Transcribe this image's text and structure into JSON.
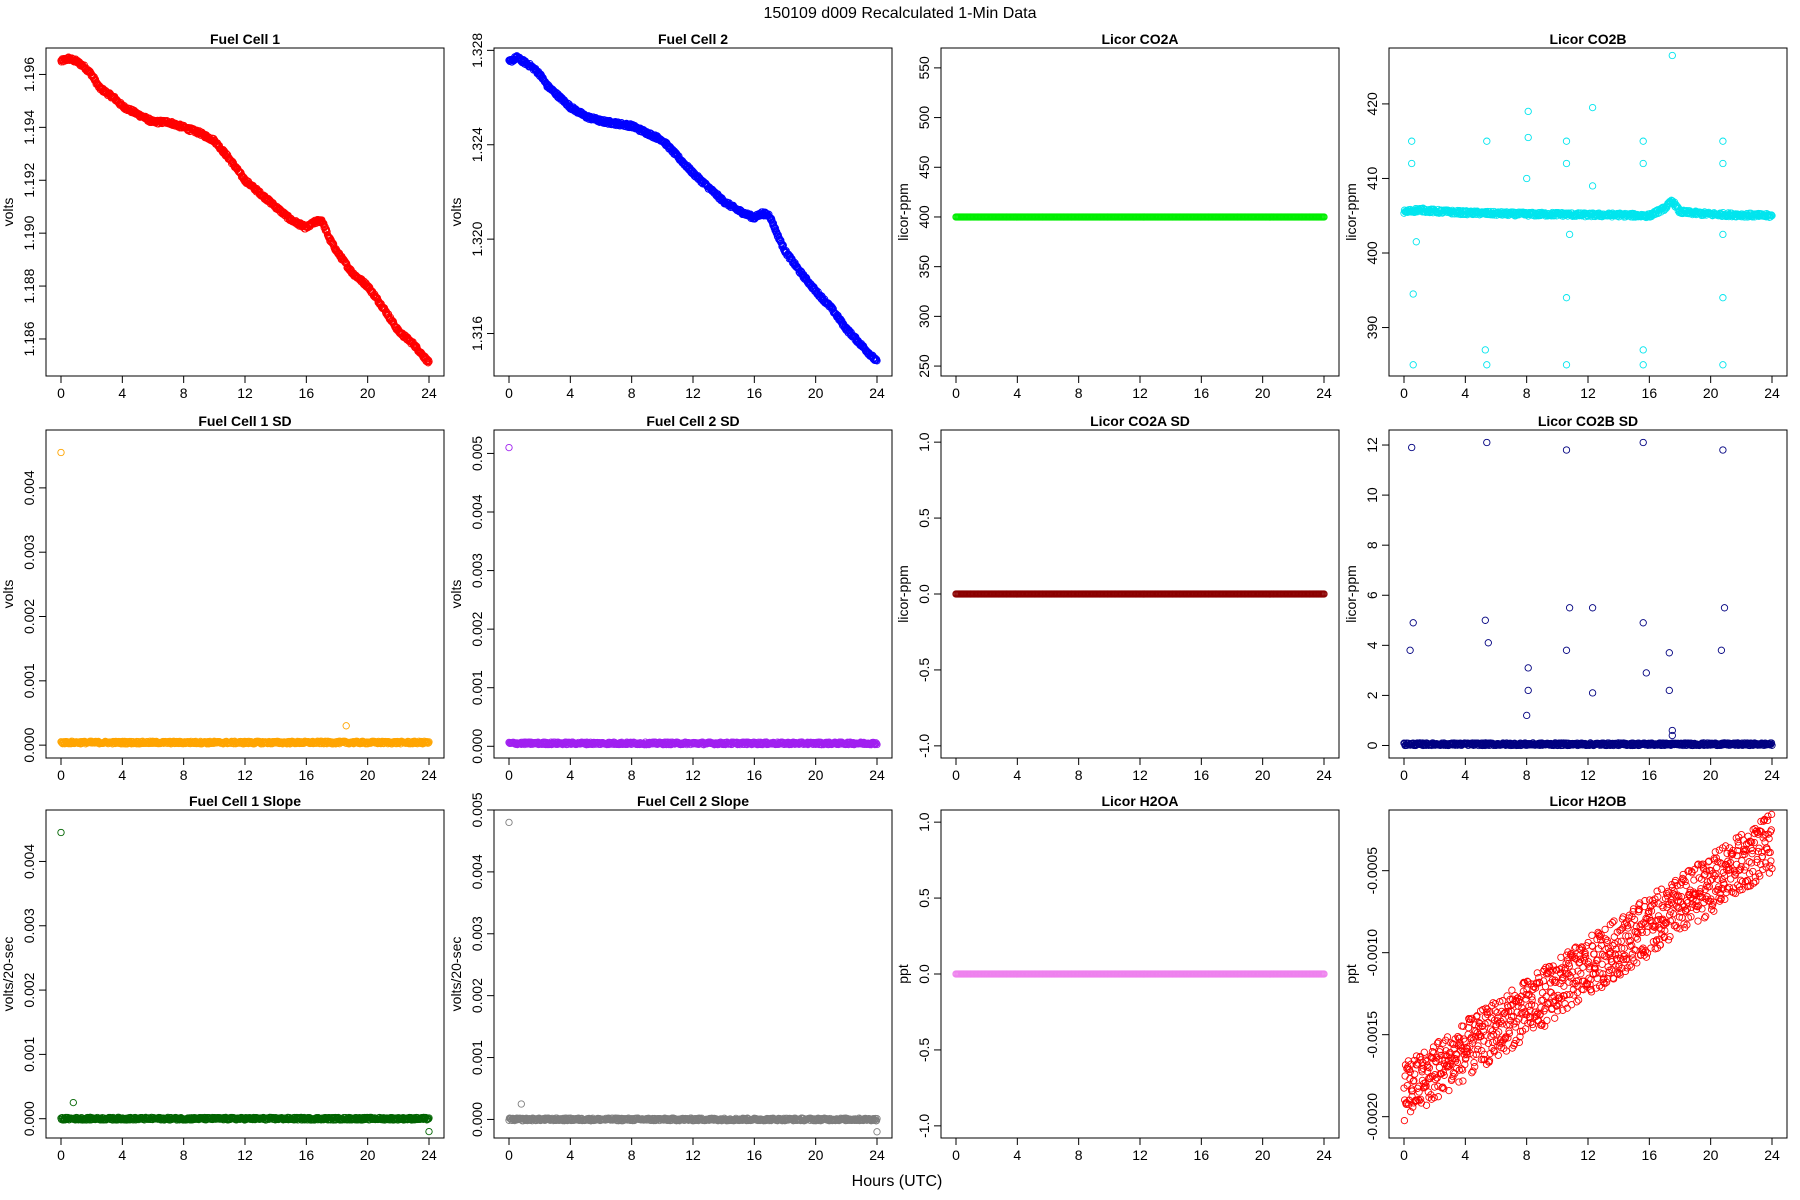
{
  "suptitle": "150109   d009   Recalculated 1-Min Data",
  "xlabel": "Hours (UTC)",
  "chart_data": [
    {
      "type": "scatter",
      "title": "Fuel Cell 1",
      "ylabel": "volts",
      "color": "#ff0000",
      "xlim": [
        0,
        24
      ],
      "ylim": [
        1.1846,
        1.197
      ],
      "yticks": [
        "1.186",
        "1.188",
        "1.190",
        "1.192",
        "1.194",
        "1.196"
      ],
      "xticks": [
        "0",
        "4",
        "8",
        "12",
        "16",
        "20",
        "24"
      ],
      "series": [
        {
          "x": [
            0,
            0.5,
            1,
            1.5,
            2,
            2.5,
            3,
            3.5,
            4,
            5,
            6,
            7,
            8,
            9,
            10,
            11,
            12,
            13,
            14,
            15,
            16,
            16.5,
            17,
            17.5,
            18,
            19,
            20,
            21,
            22,
            23,
            24
          ],
          "y": [
            1.1965,
            1.1966,
            1.1965,
            1.1963,
            1.196,
            1.1955,
            1.1953,
            1.1951,
            1.1948,
            1.1945,
            1.1942,
            1.1942,
            1.194,
            1.1938,
            1.1935,
            1.1928,
            1.192,
            1.1915,
            1.191,
            1.1905,
            1.1902,
            1.1904,
            1.1905,
            1.1898,
            1.1893,
            1.1885,
            1.188,
            1.1872,
            1.1863,
            1.1858,
            1.1851
          ]
        }
      ],
      "outliers": []
    },
    {
      "type": "scatter",
      "title": "Fuel Cell 2",
      "ylabel": "volts",
      "color": "#0000ff",
      "xlim": [
        0,
        24
      ],
      "ylim": [
        1.3142,
        1.3281
      ],
      "yticks": [
        "1.316",
        "1.320",
        "1.324",
        "1.328"
      ],
      "xticks": [
        "0",
        "4",
        "8",
        "12",
        "16",
        "20",
        "24"
      ],
      "series": [
        {
          "x": [
            0,
            0.5,
            1,
            1.5,
            2,
            2.5,
            3,
            3.5,
            4,
            5,
            6,
            7,
            8,
            9,
            10,
            11,
            12,
            13,
            14,
            15,
            16,
            16.5,
            17,
            17.5,
            18,
            19,
            20,
            21,
            22,
            23,
            24
          ],
          "y": [
            1.3275,
            1.3277,
            1.3275,
            1.3273,
            1.327,
            1.3265,
            1.3262,
            1.3259,
            1.3256,
            1.3252,
            1.325,
            1.3249,
            1.3248,
            1.3245,
            1.3242,
            1.3235,
            1.3228,
            1.3222,
            1.3216,
            1.3212,
            1.3209,
            1.3211,
            1.321,
            1.3202,
            1.3195,
            1.3186,
            1.3178,
            1.3171,
            1.3162,
            1.3155,
            1.3148
          ]
        }
      ],
      "outliers": []
    },
    {
      "type": "scatter",
      "title": "Licor CO2A",
      "ylabel": "licor-ppm",
      "color": "#00ee00",
      "xlim": [
        0,
        24
      ],
      "ylim": [
        240,
        570
      ],
      "yticks": [
        "250",
        "300",
        "350",
        "400",
        "450",
        "500",
        "550"
      ],
      "xticks": [
        "0",
        "4",
        "8",
        "12",
        "16",
        "20",
        "24"
      ],
      "series": [
        {
          "x": [
            0,
            24
          ],
          "y": [
            400,
            400
          ]
        }
      ],
      "outliers": []
    },
    {
      "type": "scatter",
      "title": "Licor CO2B",
      "ylabel": "licor-ppm",
      "color": "#00e5ee",
      "xlim": [
        0,
        24
      ],
      "ylim": [
        383.5,
        427.5
      ],
      "yticks": [
        "390",
        "400",
        "410",
        "420"
      ],
      "xticks": [
        "0",
        "4",
        "8",
        "12",
        "16",
        "20",
        "24"
      ],
      "series": [
        {
          "x": [
            0,
            1,
            2,
            4,
            6,
            8,
            10,
            12,
            14,
            16,
            17,
            17.5,
            18,
            20,
            22,
            24
          ],
          "y": [
            405.5,
            405.8,
            405.6,
            405.4,
            405.3,
            405.2,
            405.2,
            405.1,
            405.1,
            405.0,
            406.0,
            407.0,
            405.5,
            405.2,
            405.1,
            405.0
          ]
        }
      ],
      "outliers": [
        [
          0.5,
          415
        ],
        [
          0.5,
          412
        ],
        [
          0.6,
          394.5
        ],
        [
          0.6,
          385
        ],
        [
          5.4,
          415
        ],
        [
          5.3,
          387
        ],
        [
          5.4,
          385
        ],
        [
          8.1,
          419
        ],
        [
          8.1,
          415.5
        ],
        [
          8.0,
          410
        ],
        [
          10.6,
          415
        ],
        [
          10.6,
          412
        ],
        [
          10.6,
          394
        ],
        [
          10.6,
          385
        ],
        [
          12.3,
          419.5
        ],
        [
          12.3,
          409
        ],
        [
          15.6,
          415
        ],
        [
          15.6,
          412
        ],
        [
          15.6,
          387
        ],
        [
          15.6,
          385
        ],
        [
          17.5,
          426.5
        ],
        [
          20.8,
          415
        ],
        [
          20.8,
          412
        ],
        [
          20.8,
          394
        ],
        [
          20.8,
          385
        ],
        [
          20.8,
          402.5
        ],
        [
          10.8,
          402.5
        ],
        [
          0.8,
          401.5
        ]
      ]
    },
    {
      "type": "scatter",
      "title": "Fuel Cell 1 SD",
      "ylabel": "volts",
      "color": "#ffa500",
      "xlim": [
        0,
        24
      ],
      "ylim": [
        -0.0002,
        0.0049
      ],
      "yticks": [
        "0.000",
        "0.001",
        "0.002",
        "0.003",
        "0.004"
      ],
      "xticks": [
        "0",
        "4",
        "8",
        "12",
        "16",
        "20",
        "24"
      ],
      "series": [
        {
          "x": [
            0,
            24
          ],
          "y": [
            4e-05,
            4e-05
          ]
        }
      ],
      "outliers": [
        [
          0,
          0.00455
        ],
        [
          18.6,
          0.0003
        ]
      ]
    },
    {
      "type": "scatter",
      "title": "Fuel Cell 2 SD",
      "ylabel": "volts",
      "color": "#a020f0",
      "xlim": [
        0,
        24
      ],
      "ylim": [
        -0.0002,
        0.0054
      ],
      "yticks": [
        "0.000",
        "0.001",
        "0.002",
        "0.003",
        "0.004",
        "0.005"
      ],
      "xticks": [
        "0",
        "4",
        "8",
        "12",
        "16",
        "20",
        "24"
      ],
      "series": [
        {
          "x": [
            0,
            24
          ],
          "y": [
            5e-05,
            5e-05
          ]
        }
      ],
      "outliers": [
        [
          0,
          0.0051
        ]
      ]
    },
    {
      "type": "scatter",
      "title": "Licor CO2A SD",
      "ylabel": "licor-ppm",
      "color": "#8b0000",
      "xlim": [
        0,
        24
      ],
      "ylim": [
        -1.08,
        1.08
      ],
      "yticks": [
        "-1.0",
        "-0.5",
        "0.0",
        "0.5",
        "1.0"
      ],
      "xticks": [
        "0",
        "4",
        "8",
        "12",
        "16",
        "20",
        "24"
      ],
      "series": [
        {
          "x": [
            0,
            24
          ],
          "y": [
            0,
            0
          ]
        }
      ],
      "outliers": []
    },
    {
      "type": "scatter",
      "title": "Licor CO2B SD",
      "ylabel": "licor-ppm",
      "color": "#000080",
      "xlim": [
        0,
        24
      ],
      "ylim": [
        -0.5,
        12.6
      ],
      "yticks": [
        "0",
        "2",
        "4",
        "6",
        "8",
        "10",
        "12"
      ],
      "xticks": [
        "0",
        "4",
        "8",
        "12",
        "16",
        "20",
        "24"
      ],
      "series": [
        {
          "x": [
            0,
            24
          ],
          "y": [
            0.05,
            0.05
          ]
        }
      ],
      "outliers": [
        [
          0.5,
          11.9
        ],
        [
          0.4,
          3.8
        ],
        [
          0.6,
          4.9
        ],
        [
          5.4,
          12.1
        ],
        [
          5.3,
          5.0
        ],
        [
          5.5,
          4.1
        ],
        [
          8.1,
          3.1
        ],
        [
          8.1,
          2.2
        ],
        [
          8.0,
          1.2
        ],
        [
          10.6,
          11.8
        ],
        [
          10.6,
          3.8
        ],
        [
          10.8,
          5.5
        ],
        [
          12.3,
          5.5
        ],
        [
          12.3,
          2.1
        ],
        [
          15.6,
          12.1
        ],
        [
          15.6,
          4.9
        ],
        [
          15.8,
          2.9
        ],
        [
          17.3,
          3.7
        ],
        [
          17.3,
          2.2
        ],
        [
          20.8,
          11.8
        ],
        [
          20.7,
          3.8
        ],
        [
          20.9,
          5.5
        ],
        [
          17.5,
          0.6
        ],
        [
          17.5,
          0.4
        ]
      ]
    },
    {
      "type": "scatter",
      "title": "Fuel Cell 1 Slope",
      "ylabel": "volts/20-sec",
      "color": "#006400",
      "xlim": [
        0,
        24
      ],
      "ylim": [
        -0.0003,
        0.0048
      ],
      "yticks": [
        "0.000",
        "0.001",
        "0.002",
        "0.003",
        "0.004"
      ],
      "xticks": [
        "0",
        "4",
        "8",
        "12",
        "16",
        "20",
        "24"
      ],
      "series": [
        {
          "x": [
            0,
            24
          ],
          "y": [
            0,
            0
          ]
        }
      ],
      "outliers": [
        [
          0,
          0.00445
        ],
        [
          0.8,
          0.00025
        ],
        [
          24,
          -0.0002
        ]
      ]
    },
    {
      "type": "scatter",
      "title": "Fuel Cell 2 Slope",
      "ylabel": "volts/20-sec",
      "color": "#7f7f7f",
      "xlim": [
        0,
        24
      ],
      "ylim": [
        -0.0003,
        0.005
      ],
      "yticks": [
        "0.000",
        "0.001",
        "0.002",
        "0.003",
        "0.004",
        "0.005"
      ],
      "xticks": [
        "0",
        "4",
        "8",
        "12",
        "16",
        "20",
        "24"
      ],
      "series": [
        {
          "x": [
            0,
            24
          ],
          "y": [
            0,
            0
          ]
        }
      ],
      "outliers": [
        [
          0,
          0.0048
        ],
        [
          0.8,
          0.00025
        ],
        [
          24,
          -0.0002
        ]
      ]
    },
    {
      "type": "scatter",
      "title": "Licor H2OA",
      "ylabel": "ppt",
      "color": "#ee82ee",
      "xlim": [
        0,
        24
      ],
      "ylim": [
        -1.08,
        1.08
      ],
      "yticks": [
        "-1.0",
        "-0.5",
        "0.0",
        "0.5",
        "1.0"
      ],
      "xticks": [
        "0",
        "4",
        "8",
        "12",
        "16",
        "20",
        "24"
      ],
      "series": [
        {
          "x": [
            0,
            24
          ],
          "y": [
            0,
            0
          ]
        }
      ],
      "outliers": []
    },
    {
      "type": "scatter",
      "title": "Licor H2OB",
      "ylabel": "ppt",
      "color": "#ff0000",
      "xlim": [
        0,
        24
      ],
      "ylim": [
        -0.00213,
        -0.00013
      ],
      "yticks": [
        "-0.0020",
        "-0.0015",
        "-0.0010",
        "-0.0005"
      ],
      "xticks": [
        "0",
        "4",
        "8",
        "12",
        "16",
        "20",
        "24"
      ],
      "series": [
        {
          "x": [
            0,
            24
          ],
          "y": [
            -0.00185,
            -0.00033
          ]
        }
      ],
      "outliers": []
    }
  ]
}
